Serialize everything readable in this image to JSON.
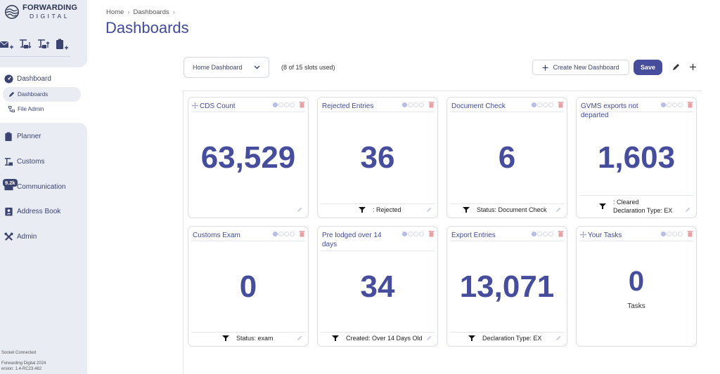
{
  "logo": {
    "line1": "FORWARDING",
    "line2": "DIGITAL"
  },
  "quick_icons": [
    "mail-plus-icon",
    "crane-down-icon",
    "crane-up-icon",
    "clipboard-plus-icon"
  ],
  "sidebar": {
    "dashboard": "Dashboard",
    "sub_dashboards": "Dashboards",
    "sub_file_admin": "File Admin",
    "planner": "Planner",
    "customs": "Customs",
    "communication": "Communication",
    "communication_badge": "9.2k",
    "address_book": "Address Book",
    "admin": "Admin"
  },
  "footer": {
    "status": "Socket Connected",
    "company": "Forwarding Digital 2024",
    "version": "ersion: 1.4-RC23.482"
  },
  "breadcrumb": {
    "home": "Home",
    "current": "Dashboards"
  },
  "page_title": "Dashboards",
  "toolbar": {
    "selected_dashboard": "Home Dashboard",
    "slots": "(8 of 15 slots used)",
    "create_label": "Create New Dashboard",
    "save_label": "Save"
  },
  "cards": [
    {
      "title": "CDS Count",
      "value": "63,529",
      "filters": []
    },
    {
      "title": "Rejected Entries",
      "value": "36",
      "filters": [
        ": Rejected"
      ]
    },
    {
      "title": "Document Check",
      "value": "6",
      "filters": [
        "Status: Document Check"
      ]
    },
    {
      "title": "GVMS exports not departed",
      "value": "1,603",
      "filters": [
        ": Cleared",
        "Declaration Type: EX"
      ]
    },
    {
      "title": "Customs Exam",
      "value": "0",
      "filters": [
        "Status: exam"
      ]
    },
    {
      "title": "Pre lodged over 14 days",
      "value": "34",
      "filters": [
        "Created: Over 14 Days Old"
      ]
    },
    {
      "title": "Export Entries",
      "value": "13,071",
      "filters": [
        "Declaration Type: EX"
      ]
    },
    {
      "title": "Your Tasks",
      "value": "0",
      "sublabel": "Tasks",
      "filters": []
    }
  ],
  "colors": {
    "accent": "#454d9c",
    "title": "#3f4a9a",
    "trash": "#e8a0a0"
  }
}
